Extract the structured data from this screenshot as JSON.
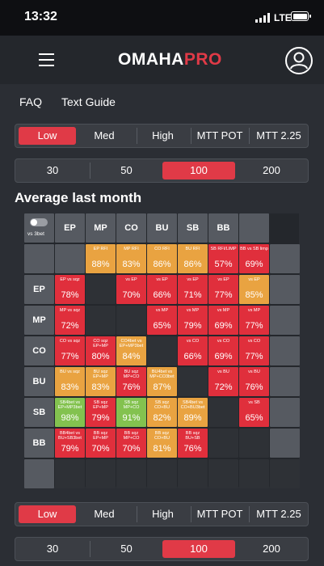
{
  "status": {
    "time": "13:32",
    "network": "LTE"
  },
  "app": {
    "logo_part1": "OMAHA",
    "logo_part2": "PRO"
  },
  "nav": {
    "faq": "FAQ",
    "text_guide": "Text Guide"
  },
  "stack_tabs": {
    "options": [
      "Low",
      "Med",
      "High",
      "MTT POT",
      "MTT 2.25"
    ],
    "selected": "Low"
  },
  "depth_tabs": {
    "options": [
      "30",
      "50",
      "100",
      "200"
    ],
    "selected": "100"
  },
  "section_title": "Average last month",
  "matrix": {
    "toggle_label": "vs 3bet",
    "col_headers": [
      "EP",
      "MP",
      "CO",
      "BU",
      "SB",
      "BB",
      ""
    ],
    "rows": [
      {
        "header": "",
        "cells": [
          {
            "color": "gray",
            "label": "",
            "value": ""
          },
          {
            "color": "orange",
            "label": "EP RFI",
            "value": "88%"
          },
          {
            "color": "orange",
            "label": "MP RFI",
            "value": "83%"
          },
          {
            "color": "orange",
            "label": "CO RFI",
            "value": "86%"
          },
          {
            "color": "orange",
            "label": "BU RFI",
            "value": "86%"
          },
          {
            "color": "red",
            "label": "SB RFI/LIMP",
            "value": "57%"
          },
          {
            "color": "red",
            "label": "BB vs SB limp",
            "value": "69%"
          },
          {
            "color": "gray",
            "label": "",
            "value": ""
          }
        ]
      },
      {
        "header": "EP",
        "cells": [
          {
            "color": "red",
            "label": "EP vs sqz",
            "value": "78%"
          },
          {
            "color": "dark",
            "label": "",
            "value": ""
          },
          {
            "color": "red",
            "label": "vs EP",
            "value": "70%"
          },
          {
            "color": "red",
            "label": "vs EP",
            "value": "66%"
          },
          {
            "color": "red",
            "label": "vs EP",
            "value": "71%"
          },
          {
            "color": "red",
            "label": "vs EP",
            "value": "77%"
          },
          {
            "color": "orange",
            "label": "vs EP",
            "value": "85%"
          },
          {
            "color": "gray",
            "label": "",
            "value": ""
          }
        ]
      },
      {
        "header": "MP",
        "cells": [
          {
            "color": "red",
            "label": "MP vs sqz",
            "value": "72%"
          },
          {
            "color": "dark",
            "label": "",
            "value": ""
          },
          {
            "color": "dark",
            "label": "",
            "value": ""
          },
          {
            "color": "red",
            "label": "vs MP",
            "value": "65%"
          },
          {
            "color": "red",
            "label": "vs MP",
            "value": "79%"
          },
          {
            "color": "red",
            "label": "vs MP",
            "value": "69%"
          },
          {
            "color": "red",
            "label": "vs MP",
            "value": "77%"
          },
          {
            "color": "gray",
            "label": "",
            "value": ""
          }
        ]
      },
      {
        "header": "CO",
        "cells": [
          {
            "color": "red",
            "label": "CO vs sqz",
            "value": "77%"
          },
          {
            "color": "red",
            "label": "CO sqz EP+MP",
            "value": "80%"
          },
          {
            "color": "orange",
            "label": "CO4bet vs EP+MP3bet",
            "value": "84%"
          },
          {
            "color": "dark",
            "label": "",
            "value": ""
          },
          {
            "color": "red",
            "label": "vs CO",
            "value": "66%"
          },
          {
            "color": "red",
            "label": "vs CO",
            "value": "69%"
          },
          {
            "color": "red",
            "label": "vs CO",
            "value": "77%"
          },
          {
            "color": "gray",
            "label": "",
            "value": ""
          }
        ]
      },
      {
        "header": "BU",
        "cells": [
          {
            "color": "orange",
            "label": "BU vs sqz",
            "value": "83%"
          },
          {
            "color": "orange",
            "label": "BU sqz EP+MP",
            "value": "83%"
          },
          {
            "color": "red",
            "label": "BU sqz MP+CO",
            "value": "76%"
          },
          {
            "color": "orange",
            "label": "BU4bet vs MP+CO3bet",
            "value": "87%"
          },
          {
            "color": "dark",
            "label": "",
            "value": ""
          },
          {
            "color": "red",
            "label": "vs BU",
            "value": "72%"
          },
          {
            "color": "red",
            "label": "vs BU",
            "value": "76%"
          },
          {
            "color": "gray",
            "label": "",
            "value": ""
          }
        ]
      },
      {
        "header": "SB",
        "cells": [
          {
            "color": "green",
            "label": "SB4bet vs EP+MP3bet",
            "value": "98%"
          },
          {
            "color": "red",
            "label": "SB sqz EP+MP",
            "value": "79%"
          },
          {
            "color": "green",
            "label": "SB sqz MP+CO",
            "value": "91%"
          },
          {
            "color": "orange",
            "label": "SB sqz CO+BU",
            "value": "82%"
          },
          {
            "color": "orange",
            "label": "SB4bet vs CO+BU3bet",
            "value": "89%"
          },
          {
            "color": "dark",
            "label": "",
            "value": ""
          },
          {
            "color": "red",
            "label": "vs SB",
            "value": "65%"
          },
          {
            "color": "gray",
            "label": "",
            "value": ""
          }
        ]
      },
      {
        "header": "BB",
        "cells": [
          {
            "color": "red",
            "label": "BB4bet vs BU+SB3bet",
            "value": "79%"
          },
          {
            "color": "red",
            "label": "BB sqz EP+MP",
            "value": "70%"
          },
          {
            "color": "red",
            "label": "BB sqz MP+CO",
            "value": "70%"
          },
          {
            "color": "orange",
            "label": "BB sqz CO+BU",
            "value": "81%"
          },
          {
            "color": "red",
            "label": "BB sqz BU+SB",
            "value": "76%"
          },
          {
            "color": "dark",
            "label": "",
            "value": ""
          },
          {
            "color": "dark",
            "label": "",
            "value": ""
          },
          {
            "color": "gray",
            "label": "",
            "value": ""
          }
        ]
      },
      {
        "header": "",
        "cells": [
          {
            "color": "dark",
            "label": "",
            "value": ""
          },
          {
            "color": "dark",
            "label": "",
            "value": ""
          },
          {
            "color": "dark",
            "label": "",
            "value": ""
          },
          {
            "color": "dark",
            "label": "",
            "value": ""
          },
          {
            "color": "dark",
            "label": "",
            "value": ""
          },
          {
            "color": "dark",
            "label": "",
            "value": ""
          },
          {
            "color": "dark",
            "label": "",
            "value": ""
          },
          {
            "color": "dark",
            "label": "",
            "value": ""
          }
        ]
      }
    ]
  },
  "colors": {
    "accent": "#e03a47",
    "red": "#e02f3c",
    "orange": "#e9a341",
    "green": "#83c24f",
    "gray": "#565a61",
    "dark": "#2e3136"
  },
  "icons": {
    "menu": "hamburger-icon",
    "profile": "user-profile-icon",
    "toggle": "toggle-switch"
  }
}
